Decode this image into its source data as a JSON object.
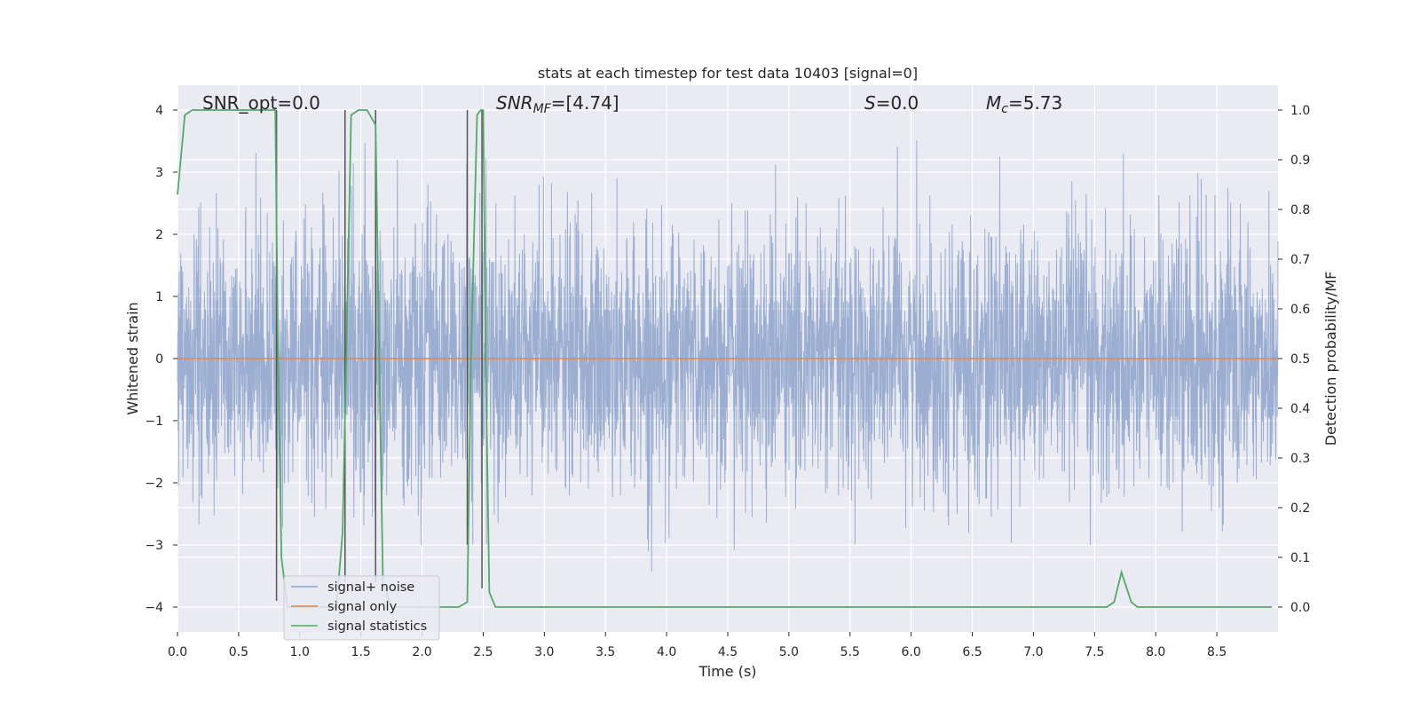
{
  "chart_data": {
    "type": "line",
    "title": "stats at each timestep for test data 10403 [signal=0]",
    "xlabel": "Time (s)",
    "ylabel": "Whitened strain",
    "y2label": "Detection probability/MF",
    "xlim": [
      0,
      9.0
    ],
    "ylim": [
      -4.4,
      4.4
    ],
    "y2lim": [
      -0.05,
      1.05
    ],
    "xticks": [
      0.0,
      0.5,
      1.0,
      1.5,
      2.0,
      2.5,
      3.0,
      3.5,
      4.0,
      4.5,
      5.0,
      5.5,
      6.0,
      6.5,
      7.0,
      7.5,
      8.0,
      8.5
    ],
    "xtick_labels": [
      "0.0",
      "0.5",
      "1.0",
      "1.5",
      "2.0",
      "2.5",
      "3.0",
      "3.5",
      "4.0",
      "4.5",
      "5.0",
      "5.5",
      "6.0",
      "6.5",
      "7.0",
      "7.5",
      "8.0",
      "8.5"
    ],
    "yticks": [
      4,
      3,
      2,
      1,
      0,
      -1,
      -2,
      -3,
      -4
    ],
    "ytick_labels": [
      "4",
      "3",
      "2",
      "1",
      "0",
      "−1",
      "−2",
      "−3",
      "−4"
    ],
    "y2ticks": [
      1.0,
      0.9,
      0.8,
      0.7,
      0.6,
      0.5,
      0.4,
      0.3,
      0.2,
      0.1,
      0.0
    ],
    "y2tick_labels": [
      "1.0",
      "0.9",
      "0.8",
      "0.7",
      "0.6",
      "0.5",
      "0.4",
      "0.3",
      "0.2",
      "0.1",
      "0.0"
    ],
    "grid": true,
    "legend_position": "lower-left",
    "annotations": {
      "snr_opt": "SNR_opt=0.0",
      "snr_mf": "SNR_MF=[4.74]",
      "snr_mf_base": "SNR",
      "snr_mf_sub": "MF",
      "snr_mf_rest": "=[4.74]",
      "s_val": "S=0.0",
      "s_var": "S",
      "s_rest": "=0.0",
      "mc": "M_c=5.73",
      "mc_base": "M",
      "mc_sub": "c",
      "mc_rest": "=5.73"
    },
    "series": [
      {
        "name": "signal+ noise",
        "color": "#4c72b0",
        "style": "dense noise trace",
        "envelope": {
          "x": [
            0.0,
            0.5,
            1.0,
            1.5,
            2.0,
            2.5,
            3.0,
            3.5,
            4.0,
            4.5,
            5.0,
            5.5,
            6.0,
            6.5,
            7.0,
            7.5,
            8.0,
            8.5,
            9.0
          ],
          "max": [
            3.0,
            3.2,
            3.6,
            3.5,
            3.0,
            3.7,
            3.1,
            3.0,
            3.1,
            3.2,
            3.1,
            3.3,
            3.9,
            3.2,
            3.3,
            3.4,
            3.6,
            3.2,
            2.8
          ],
          "min": [
            -2.8,
            -3.3,
            -3.8,
            -3.0,
            -3.0,
            -3.0,
            -2.9,
            -3.2,
            -3.5,
            -3.1,
            -2.9,
            -3.0,
            -2.9,
            -2.9,
            -3.0,
            -3.0,
            -3.1,
            -3.2,
            -2.6
          ]
        }
      },
      {
        "name": "signal only",
        "color": "#dd8452",
        "x": [
          0.0,
          9.0
        ],
        "y": [
          0.0,
          0.0
        ]
      },
      {
        "name": "signal statistics",
        "color": "#55a868",
        "axis": "right",
        "x": [
          0.0,
          0.06,
          0.12,
          0.8,
          0.82,
          0.85,
          0.9,
          1.3,
          1.35,
          1.38,
          1.42,
          1.48,
          1.55,
          1.62,
          1.65,
          1.68,
          1.75,
          2.3,
          2.37,
          2.4,
          2.45,
          2.48,
          2.5,
          2.52,
          2.55,
          2.6,
          3.0,
          7.6,
          7.66,
          7.72,
          7.8,
          7.85,
          8.0,
          8.95
        ],
        "y": [
          0.83,
          0.99,
          1.0,
          1.0,
          0.55,
          0.1,
          0.0,
          0.0,
          0.15,
          0.5,
          0.99,
          1.0,
          1.0,
          0.97,
          0.5,
          0.05,
          0.0,
          0.0,
          0.01,
          0.5,
          0.99,
          1.0,
          1.0,
          0.5,
          0.03,
          0.0,
          0.0,
          0.0,
          0.01,
          0.07,
          0.01,
          0.0,
          0.0,
          0.0
        ]
      }
    ],
    "vertical_markers": {
      "color": "#555555",
      "segments": [
        {
          "x": 0.81,
          "y1": 4.0,
          "y2": -3.9
        },
        {
          "x": 1.37,
          "y1": 4.0,
          "y2": -3.6
        },
        {
          "x": 1.62,
          "y1": 4.0,
          "y2": -3.6
        },
        {
          "x": 2.37,
          "y1": 4.0,
          "y2": -3.0
        },
        {
          "x": 2.49,
          "y1": 4.0,
          "y2": -3.7
        }
      ]
    }
  }
}
